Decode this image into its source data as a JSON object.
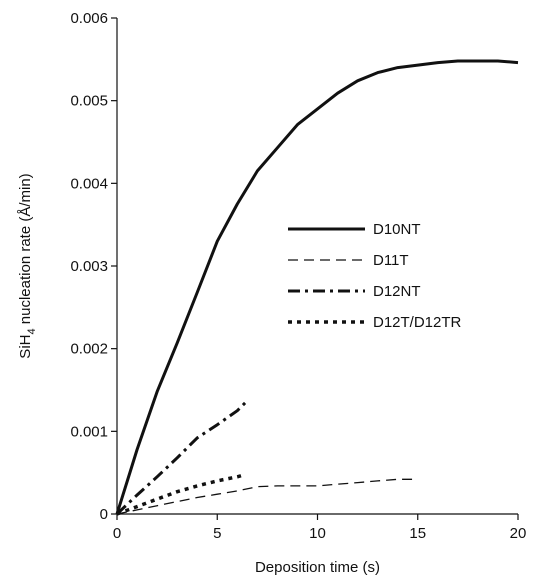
{
  "chart_data": {
    "type": "line",
    "title": "",
    "xlabel": "Deposition time (s)",
    "ylabel": {
      "prefix": "SiH",
      "subscript": "4",
      "suffix": " nucleation rate (Å/min)"
    },
    "xlim": [
      0,
      20
    ],
    "ylim": [
      0,
      0.006
    ],
    "x_ticks": [
      "0",
      "5",
      "10",
      "15",
      "20"
    ],
    "x_tick_values": [
      0,
      5,
      10,
      15,
      20
    ],
    "y_ticks": [
      "0",
      "0.001",
      "0.002",
      "0.003",
      "0.004",
      "0.005",
      "0.006"
    ],
    "y_tick_values": [
      0,
      0.001,
      0.002,
      0.003,
      0.004,
      0.005,
      0.006
    ],
    "grid": false,
    "legend_position": "center-right",
    "series": [
      {
        "name": "D10NT",
        "style": "solid-thick",
        "color": "#111111",
        "x": [
          0,
          1,
          2,
          3,
          4,
          5,
          6,
          7,
          8,
          9,
          10,
          11,
          12,
          13,
          14,
          15,
          16,
          17,
          18,
          19,
          20
        ],
        "y": [
          0,
          0.00078,
          0.00148,
          0.00207,
          0.00268,
          0.0033,
          0.00375,
          0.00415,
          0.00443,
          0.00471,
          0.0049,
          0.00509,
          0.00524,
          0.00534,
          0.0054,
          0.00543,
          0.00546,
          0.00548,
          0.00548,
          0.00548,
          0.00546
        ]
      },
      {
        "name": "D11T",
        "style": "dash-thin",
        "color": "#111111",
        "x": [
          0,
          1,
          2,
          3,
          4,
          5,
          6,
          7,
          8,
          9,
          10,
          11,
          12,
          13,
          14,
          15
        ],
        "y": [
          0,
          5e-05,
          0.0001,
          0.00015,
          0.0002,
          0.00024,
          0.00028,
          0.00033,
          0.00034,
          0.00034,
          0.00034,
          0.00036,
          0.00038,
          0.0004,
          0.00042,
          0.00042
        ]
      },
      {
        "name": "D12NT",
        "style": "dashdot-thick",
        "color": "#111111",
        "x": [
          0,
          1,
          2,
          3,
          4,
          5,
          6,
          6.5
        ],
        "y": [
          0,
          0.00023,
          0.00045,
          0.00068,
          0.00092,
          0.00108,
          0.00125,
          0.00137
        ]
      },
      {
        "name": "D12T/D12TR",
        "style": "dot-thick",
        "color": "#111111",
        "x": [
          0,
          1,
          2,
          3,
          4,
          5,
          6,
          6.3
        ],
        "y": [
          0,
          9e-05,
          0.00018,
          0.00027,
          0.00034,
          0.0004,
          0.00045,
          0.00047
        ]
      }
    ]
  }
}
